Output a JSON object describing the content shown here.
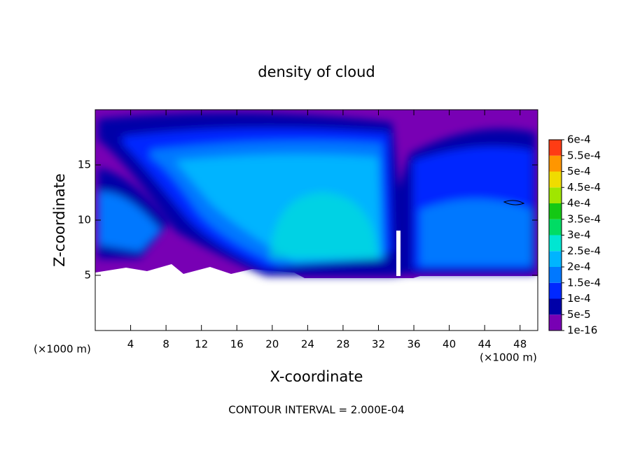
{
  "chart_data": {
    "type": "contour",
    "title": "density of cloud",
    "x_label": "X-coordinate",
    "y_label": "Z-coordinate",
    "x_unit_left": "(×1000 m)",
    "x_unit_right": "(×1000 m)",
    "annotation": "CONTOUR INTERVAL = 2.000E-04",
    "xlim": [
      0,
      50
    ],
    "ylim": [
      0,
      20
    ],
    "xticks": [
      4,
      8,
      12,
      16,
      20,
      24,
      28,
      32,
      36,
      40,
      44,
      48
    ],
    "yticks": [
      5,
      10,
      15
    ],
    "colorbar": {
      "levels": [
        {
          "value": 1e-16,
          "label": "1e-16"
        },
        {
          "value": 5e-05,
          "label": "5e-5"
        },
        {
          "value": 0.0001,
          "label": "1e-4"
        },
        {
          "value": 0.00015,
          "label": "1.5e-4"
        },
        {
          "value": 0.0002,
          "label": "2e-4"
        },
        {
          "value": 0.00025,
          "label": "2.5e-4"
        },
        {
          "value": 0.0003,
          "label": "3e-4"
        },
        {
          "value": 0.00035,
          "label": "3.5e-4"
        },
        {
          "value": 0.0004,
          "label": "4e-4"
        },
        {
          "value": 0.00045,
          "label": "4.5e-4"
        },
        {
          "value": 0.0005,
          "label": "5e-4"
        },
        {
          "value": 0.00055,
          "label": "5.5e-4"
        },
        {
          "value": 0.0006,
          "label": "6e-4"
        }
      ],
      "colors": [
        "#7800b4",
        "#0000a8",
        "#0028ff",
        "#0078ff",
        "#00b4ff",
        "#00e6d2",
        "#00dc64",
        "#14c814",
        "#a0e600",
        "#f0dc00",
        "#ff9600",
        "#ff3c14"
      ]
    }
  }
}
